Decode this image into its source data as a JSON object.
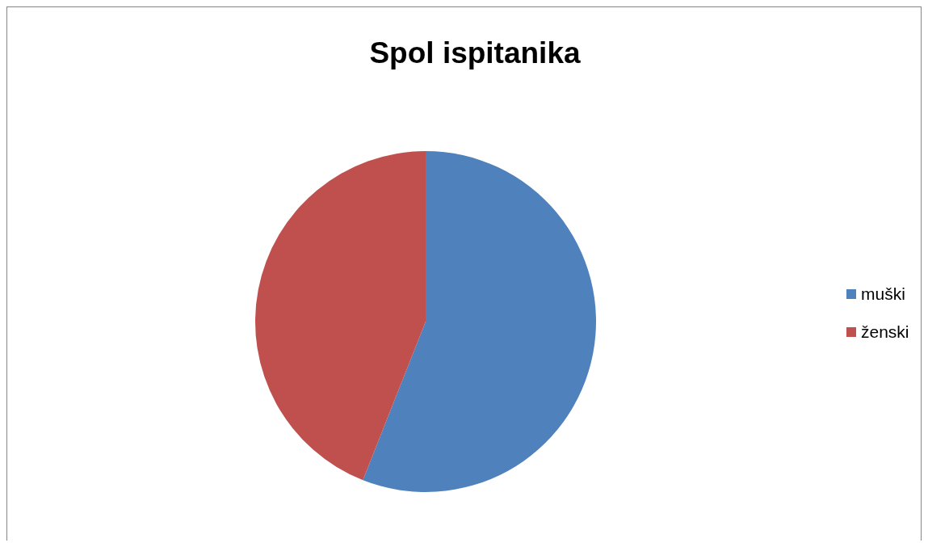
{
  "chart_data": {
    "type": "pie",
    "title": "Spol ispitanika",
    "categories": [
      "muški",
      "ženski"
    ],
    "values": [
      56,
      44
    ],
    "colors": [
      "#4f81bd",
      "#c0504d"
    ],
    "legend": "right"
  }
}
